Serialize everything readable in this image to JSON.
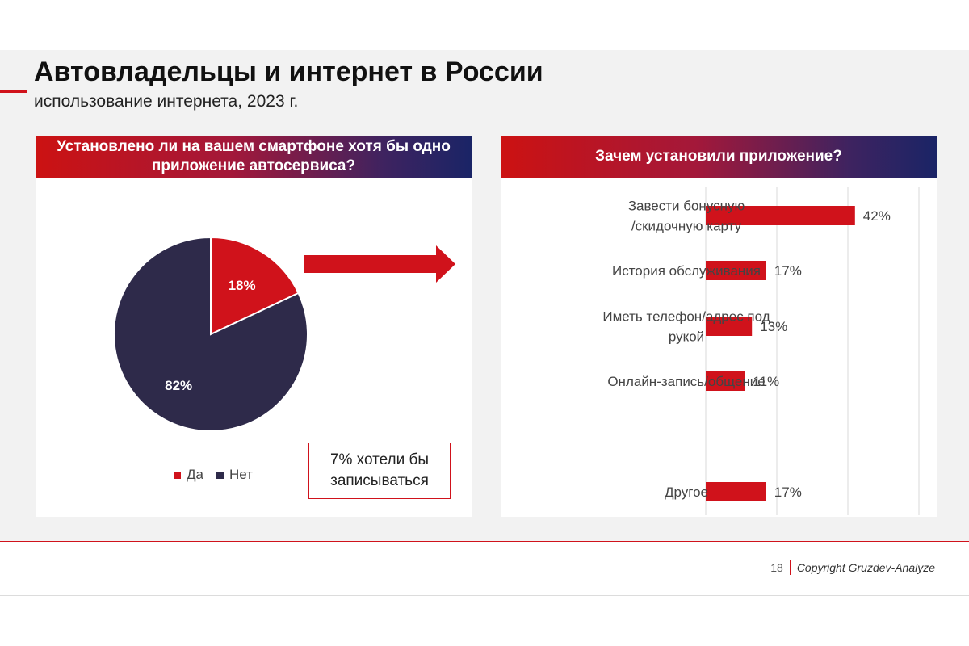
{
  "page": {
    "title": "Автовладельцы и интернет в России",
    "subtitle": "использование интернета, 2023 г.",
    "page_number": "18",
    "copyright": "Copyright Gruzdev-Analyze"
  },
  "left_panel": {
    "header": "Установлено ли на вашем смартфоне хотя бы одно приложение автосервиса?",
    "callout": "7% хотели бы\nзаписываться"
  },
  "right_panel": {
    "header": "Зачем установили приложение?"
  },
  "colors": {
    "accent": "#d0121b",
    "navy": "#2e2a4a",
    "gray_bg": "#f2f2f2"
  },
  "chart_data": [
    {
      "type": "pie",
      "slices": [
        {
          "label": "Да",
          "value": 18,
          "display": "18%",
          "color": "#d0121b"
        },
        {
          "label": "Нет",
          "value": 82,
          "display": "82%",
          "color": "#2e2a4a"
        }
      ],
      "legend_position": "bottom"
    },
    {
      "type": "bar",
      "orientation": "horizontal",
      "categories": [
        "Завести бонусную /скидочную карту",
        "История обслуживания",
        "Иметь телефон/адрес под рукой",
        "Онлайн-запись/общение",
        "Другое"
      ],
      "category_lines": [
        [
          "Завести бонусную",
          "/скидочную карту"
        ],
        [
          "История обслуживания"
        ],
        [
          "Иметь телефон/адрес под",
          "рукой"
        ],
        [
          "Онлайн-запись/общение"
        ],
        [
          "Другое"
        ]
      ],
      "values": [
        42,
        17,
        13,
        11,
        17
      ],
      "labels": [
        "42%",
        "17%",
        "13%",
        "11%",
        "17%"
      ],
      "xlim": [
        0,
        60
      ],
      "grid": true,
      "color": "#d0121b"
    }
  ]
}
